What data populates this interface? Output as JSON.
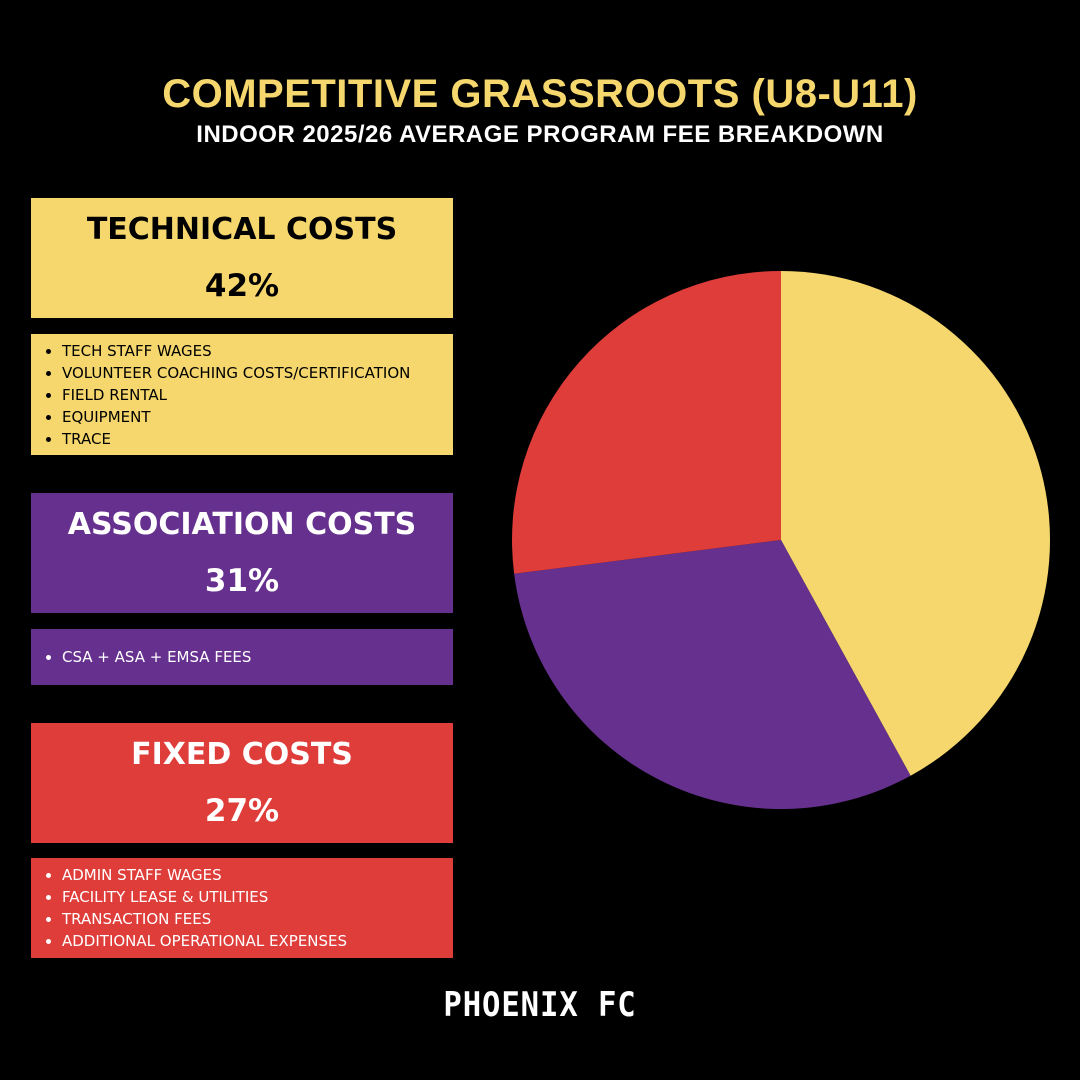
{
  "header": {
    "title": "COMPETITIVE GRASSROOTS (U8-U11)",
    "subtitle": "INDOOR 2025/26 AVERAGE PROGRAM FEE BREAKDOWN"
  },
  "categories": [
    {
      "name": "TECHNICAL COSTS",
      "percent_label": "42%",
      "color": "#F5D76E",
      "text_color": "#000000",
      "items": [
        "TECH STAFF WAGES",
        "VOLUNTEER COACHING COSTS/CERTIFICATION",
        "FIELD RENTAL",
        "EQUIPMENT",
        "TRACE"
      ]
    },
    {
      "name": "ASSOCIATION COSTS",
      "percent_label": "31%",
      "color": "#66308F",
      "text_color": "#FFFFFF",
      "items": [
        "CSA + ASA + EMSA FEES"
      ]
    },
    {
      "name": "FIXED COSTS",
      "percent_label": "27%",
      "color": "#DE3D3A",
      "text_color": "#FFFFFF",
      "items": [
        "ADMIN STAFF WAGES",
        "FACILITY LEASE & UTILITIES",
        "TRANSACTION FEES",
        "ADDITIONAL OPERATIONAL EXPENSES"
      ]
    }
  ],
  "chart_data": {
    "type": "pie",
    "categories": [
      "TECHNICAL COSTS",
      "ASSOCIATION COSTS",
      "FIXED COSTS"
    ],
    "values": [
      42,
      31,
      27
    ],
    "colors": [
      "#F5D76E",
      "#66308F",
      "#DE3D3A"
    ],
    "start_angle_deg": 0,
    "direction": "clockwise"
  },
  "footer": {
    "logo_text": "PHOENIX FC"
  }
}
